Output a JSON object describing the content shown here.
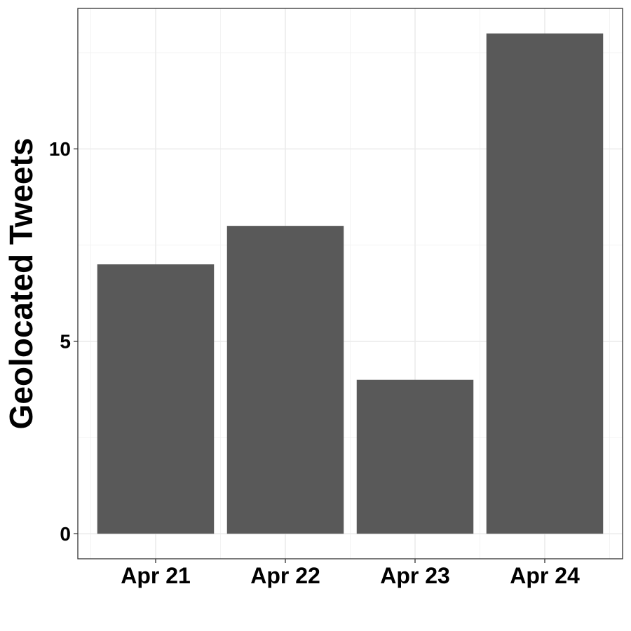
{
  "chart_data": {
    "type": "bar",
    "title": "",
    "xlabel": "",
    "ylabel": "Geolocated Tweets",
    "categories": [
      "Apr 21",
      "Apr 22",
      "Apr 23",
      "Apr 24"
    ],
    "values": [
      7,
      8,
      4,
      13
    ],
    "ylim": [
      -0.65,
      13.65
    ],
    "yticks": [
      0,
      5,
      10
    ],
    "y_tick_labels": [
      "0",
      "5",
      "10"
    ],
    "grid": true,
    "legend": "none",
    "colors": {
      "bar": "#595959",
      "grid": "#ebebeb",
      "panel_border": "#333333",
      "background": "#ffffff"
    }
  }
}
